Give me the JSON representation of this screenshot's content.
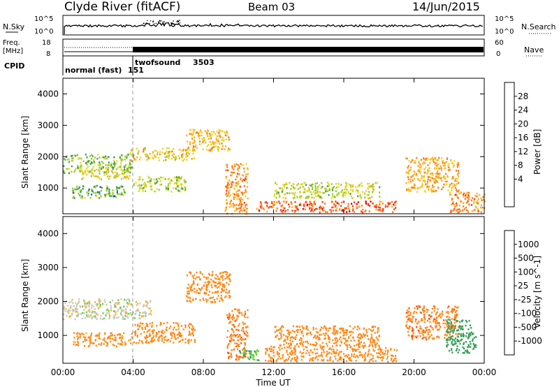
{
  "header": {
    "station": "Clyde River (fitACF)",
    "beam": "Beam 03",
    "date": "14/Jun/2015"
  },
  "top_panels": {
    "nsky_label": "N.Sky",
    "nsky_ticks": [
      "10^5",
      "10^0"
    ],
    "nsearch_label": "N.Search",
    "freq_label_1": "Freq.",
    "freq_label_2": "[MHz]",
    "freq_ticks": [
      "18",
      "8"
    ],
    "nave_label": "Nave",
    "nave_ticks": [
      "60",
      "0"
    ],
    "cpid_label": "CPID",
    "cpid_segments": [
      {
        "name": "normal (fast)",
        "id": "151"
      },
      {
        "name": "twofsound",
        "id": "3503"
      }
    ]
  },
  "x_axis": {
    "label": "Time UT",
    "ticks": [
      "00:00",
      "04:00",
      "08:00",
      "12:00",
      "16:00",
      "20:00",
      "00:00"
    ]
  },
  "y_axis": {
    "label": "Slant Range [km]",
    "ticks": [
      "4000",
      "3000",
      "2000",
      "1000"
    ]
  },
  "power_colorbar": {
    "label": "Power [dB]",
    "ticks": [
      "28",
      "24",
      "20",
      "16",
      "12",
      "8",
      "4"
    ],
    "colors": [
      "#e00000",
      "#ff3a1a",
      "#ff7a1a",
      "#ffb020",
      "#e8d820",
      "#98cc2a",
      "#3a9e5a",
      "#1a5aa8",
      "#2a20ff"
    ]
  },
  "velocity_colorbar": {
    "label": "Velocity [m s^-1]",
    "ticks": [
      "1000",
      "500",
      "100",
      "25",
      "-25",
      "-100",
      "-500",
      "-1000"
    ],
    "colors": [
      "#2030c8",
      "#2a6aa0",
      "#3a9e5a",
      "#6ccc3a",
      "#c8c8c0",
      "#ffb020",
      "#ff8a1a",
      "#ff4a1a",
      "#e00000"
    ]
  },
  "chart_data": [
    {
      "type": "heatmap",
      "title": "Power",
      "xlabel": "Time UT",
      "ylabel": "Slant Range [km]",
      "xlim": [
        0,
        24
      ],
      "ylim": [
        180,
        4500
      ],
      "colorbar_label": "Power [dB]",
      "colorbar_range": [
        0,
        32
      ],
      "regions": [
        {
          "t": [
            0.0,
            4.0
          ],
          "r": [
            1500,
            2100
          ],
          "v": 12
        },
        {
          "t": [
            0.5,
            3.5
          ],
          "r": [
            700,
            1100
          ],
          "v": 10
        },
        {
          "t": [
            1.0,
            3.8
          ],
          "r": [
            1300,
            1600
          ],
          "v": 16
        },
        {
          "t": [
            3.8,
            7.5
          ],
          "r": [
            1900,
            2300
          ],
          "v": 18
        },
        {
          "t": [
            4.0,
            7.0
          ],
          "r": [
            900,
            1400
          ],
          "v": 13
        },
        {
          "t": [
            7.0,
            9.5
          ],
          "r": [
            2200,
            2900
          ],
          "v": 19
        },
        {
          "t": [
            9.2,
            10.5
          ],
          "r": [
            200,
            1800
          ],
          "v": 22
        },
        {
          "t": [
            11.0,
            19.0
          ],
          "r": [
            250,
            600
          ],
          "v": 26
        },
        {
          "t": [
            12.0,
            18.0
          ],
          "r": [
            700,
            1200
          ],
          "v": 14
        },
        {
          "t": [
            19.5,
            22.5
          ],
          "r": [
            900,
            2000
          ],
          "v": 20
        },
        {
          "t": [
            22.0,
            24.0
          ],
          "r": [
            250,
            900
          ],
          "v": 22
        }
      ]
    },
    {
      "type": "heatmap",
      "title": "Velocity",
      "xlabel": "Time UT",
      "ylabel": "Slant Range [km]",
      "xlim": [
        0,
        24
      ],
      "ylim": [
        180,
        4500
      ],
      "colorbar_label": "Velocity [m s^-1]",
      "colorbar_range": [
        -1000,
        1000
      ],
      "regions": [
        {
          "t": [
            0.0,
            5.0
          ],
          "r": [
            1500,
            2100
          ],
          "v": 0
        },
        {
          "t": [
            0.5,
            4.0
          ],
          "r": [
            700,
            1100
          ],
          "v": -150
        },
        {
          "t": [
            4.0,
            7.5
          ],
          "r": [
            800,
            1400
          ],
          "v": -200
        },
        {
          "t": [
            7.0,
            9.5
          ],
          "r": [
            2000,
            2900
          ],
          "v": -300
        },
        {
          "t": [
            9.3,
            10.5
          ],
          "r": [
            300,
            1800
          ],
          "v": -400
        },
        {
          "t": [
            10.0,
            11.2
          ],
          "r": [
            250,
            600
          ],
          "v": 100
        },
        {
          "t": [
            11.5,
            19.0
          ],
          "r": [
            250,
            700
          ],
          "v": -200
        },
        {
          "t": [
            12.0,
            18.0
          ],
          "r": [
            700,
            1300
          ],
          "v": -300
        },
        {
          "t": [
            19.5,
            22.5
          ],
          "r": [
            900,
            1900
          ],
          "v": -400
        },
        {
          "t": [
            21.8,
            23.5
          ],
          "r": [
            500,
            1500
          ],
          "v": 300
        }
      ]
    }
  ]
}
